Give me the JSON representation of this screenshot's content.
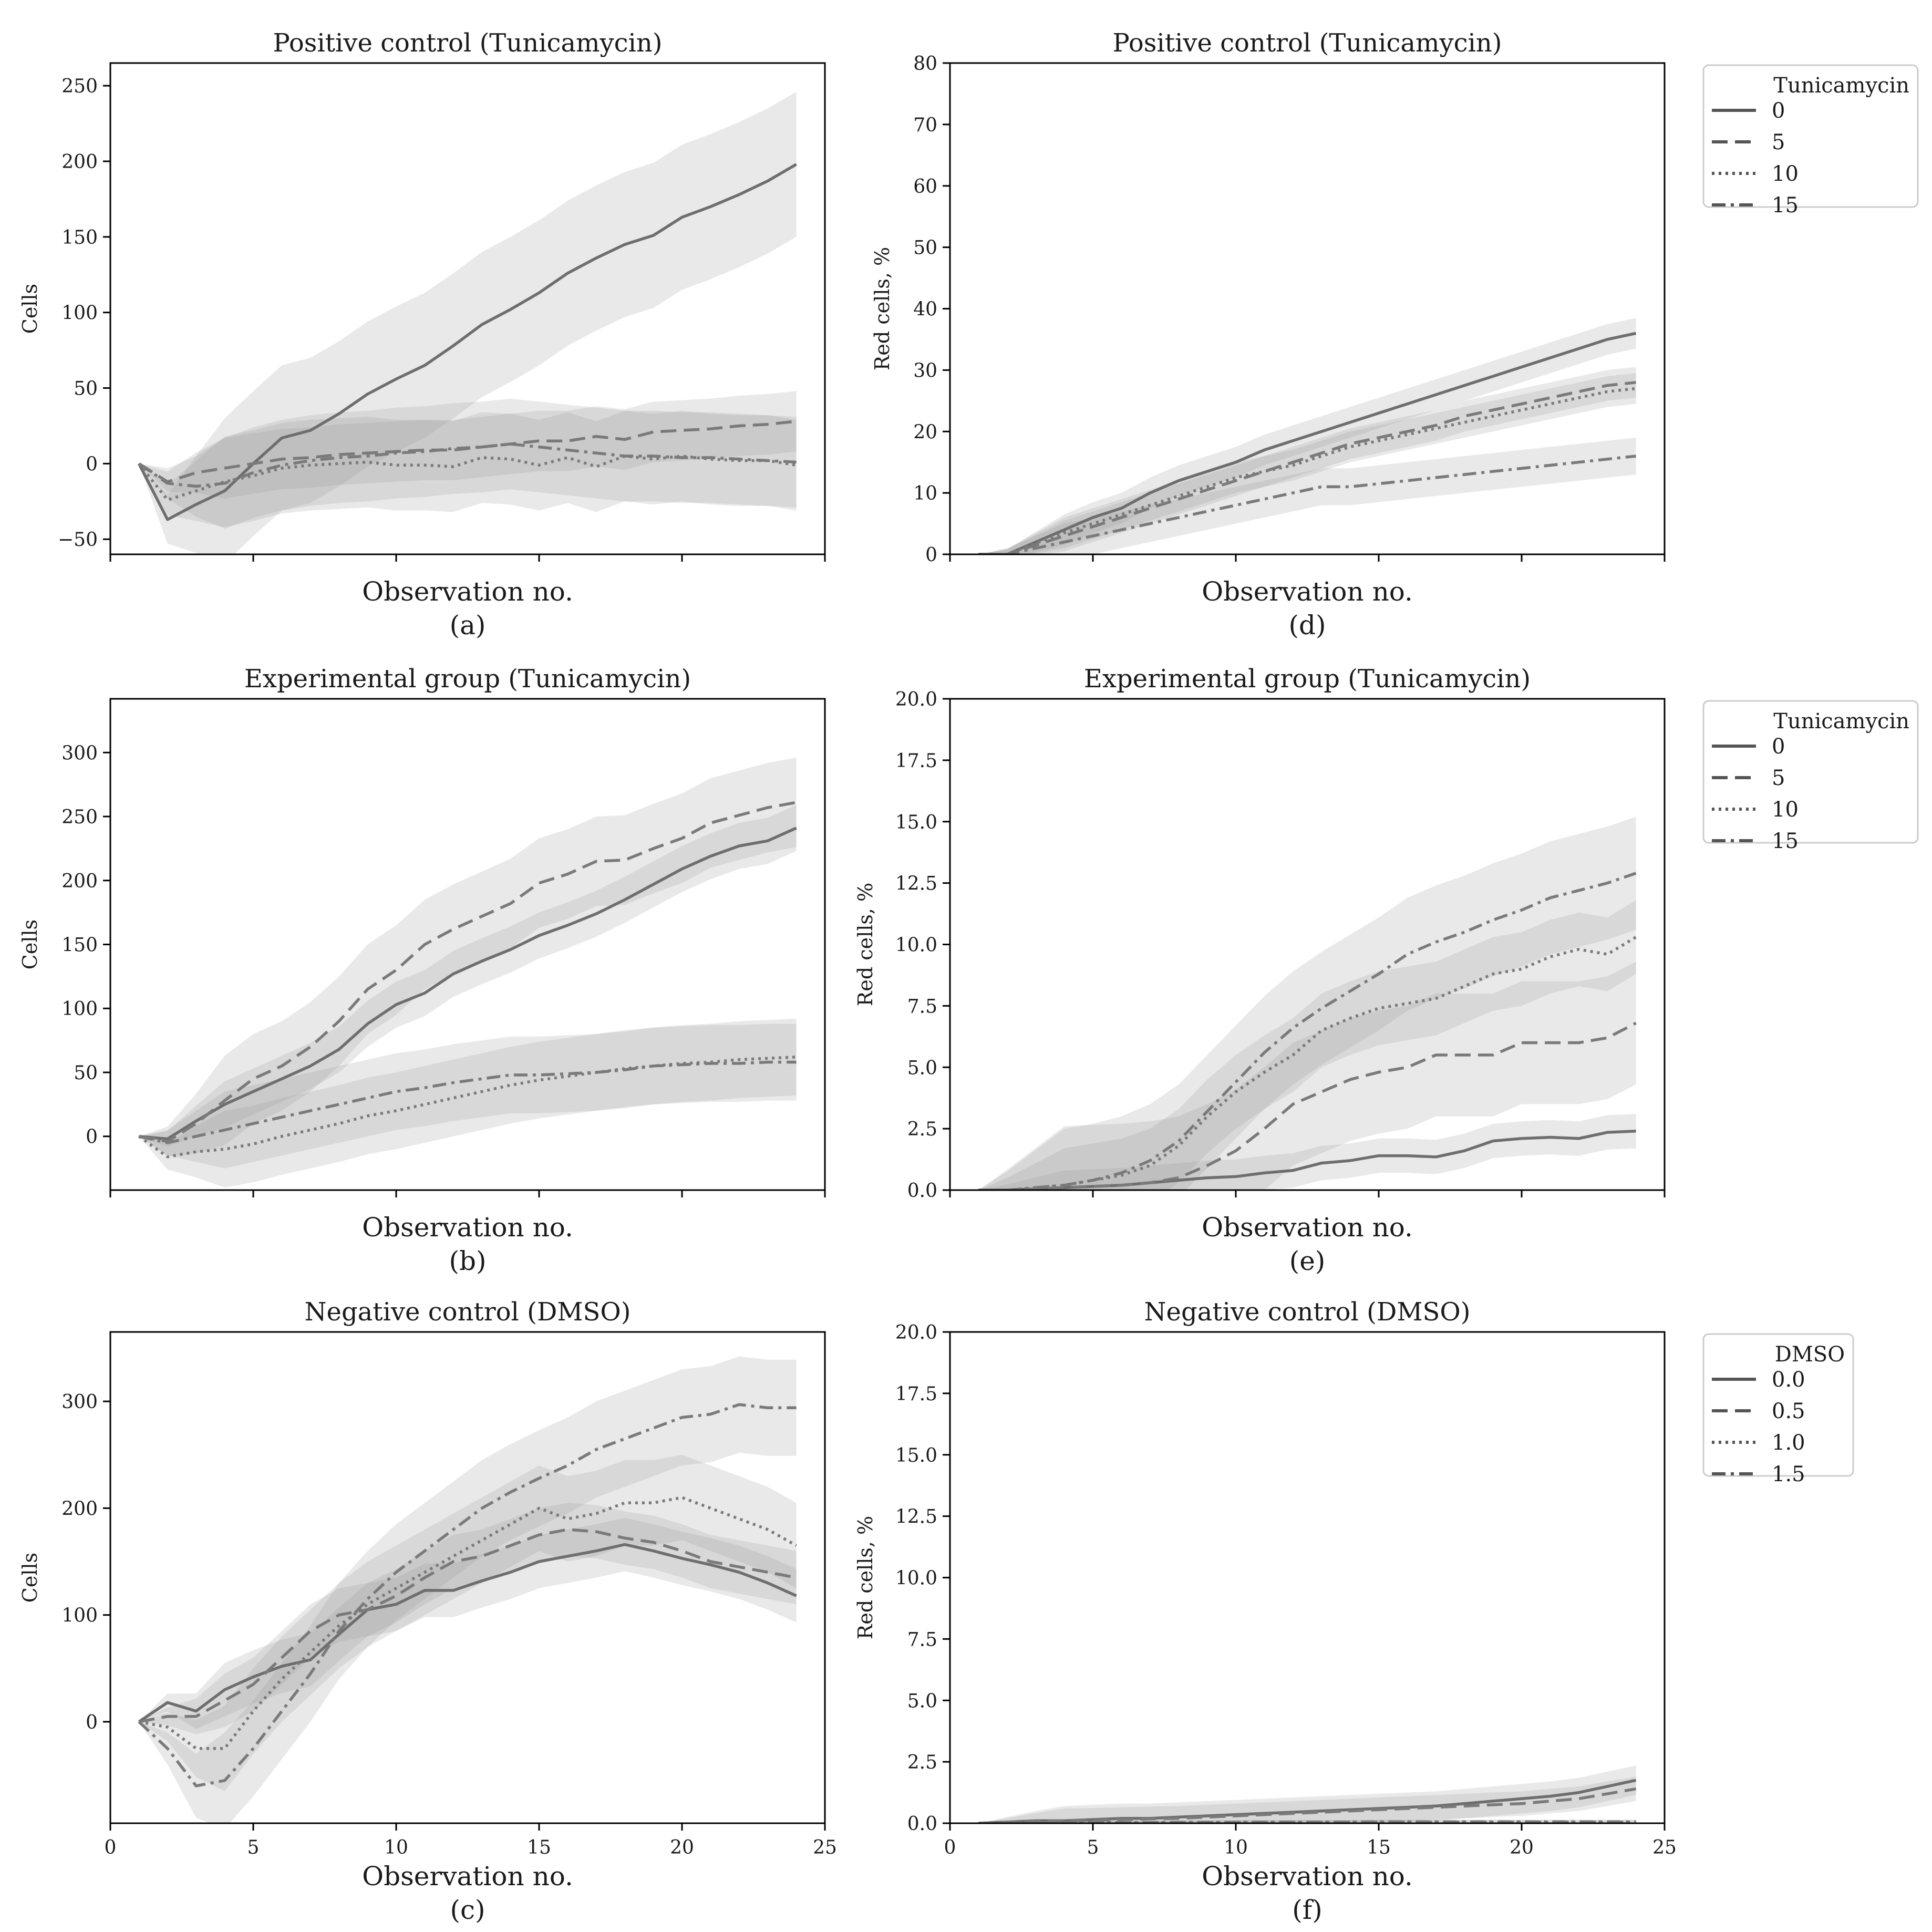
{
  "chart_data": [
    {
      "id": "a",
      "type": "line",
      "title": "Positive control (Tunicamycin)",
      "xlabel": "Observation no.",
      "caption": "(a)",
      "ylabel": "Cells",
      "xlim": [
        0,
        25
      ],
      "ylim": [
        -60,
        265
      ],
      "yticks": [
        -50,
        0,
        50,
        100,
        150,
        200,
        250
      ],
      "show_xtick_labels": false,
      "x": [
        1,
        2,
        3,
        4,
        5,
        6,
        7,
        8,
        9,
        10,
        11,
        12,
        13,
        14,
        15,
        16,
        17,
        18,
        19,
        20,
        21,
        22,
        23,
        24
      ],
      "series": [
        {
          "name": "0",
          "dash": "solid",
          "values": [
            0,
            -37,
            -27,
            -18,
            0,
            17,
            22,
            33,
            46,
            56,
            65,
            78,
            92,
            102,
            113,
            126,
            136,
            145,
            151,
            163,
            170,
            178,
            187,
            198
          ],
          "band": 48
        },
        {
          "name": "5",
          "dash": "dashed",
          "values": [
            0,
            -12,
            -6,
            -3,
            0,
            3,
            4,
            6,
            7,
            8,
            9,
            9,
            11,
            13,
            15,
            15,
            18,
            16,
            21,
            22,
            23,
            25,
            26,
            28
          ],
          "band": 20
        },
        {
          "name": "10",
          "dash": "dotted",
          "values": [
            0,
            -24,
            -18,
            -12,
            -8,
            -3,
            -1,
            0,
            1,
            -1,
            -1,
            -2,
            4,
            3,
            -1,
            4,
            -2,
            5,
            3,
            5,
            3,
            2,
            2,
            -1
          ],
          "band": 30
        },
        {
          "name": "15",
          "dash": "dashdot",
          "values": [
            0,
            -13,
            -15,
            -13,
            -6,
            -1,
            2,
            4,
            5,
            7,
            8,
            10,
            11,
            13,
            11,
            9,
            7,
            5,
            5,
            4,
            4,
            3,
            2,
            1
          ],
          "band": 30
        }
      ]
    },
    {
      "id": "b",
      "type": "line",
      "title": "Experimental group (Tunicamycin)",
      "xlabel": "Observation no.",
      "caption": "(b)",
      "ylabel": "Cells",
      "xlim": [
        0,
        25
      ],
      "ylim": [
        -42,
        342
      ],
      "yticks": [
        0,
        50,
        100,
        150,
        200,
        250,
        300
      ],
      "show_xtick_labels": false,
      "x": [
        1,
        2,
        3,
        4,
        5,
        6,
        7,
        8,
        9,
        10,
        11,
        12,
        13,
        14,
        15,
        16,
        17,
        18,
        19,
        20,
        21,
        22,
        23,
        24
      ],
      "series": [
        {
          "name": "0",
          "dash": "solid",
          "values": [
            0,
            -2,
            12,
            25,
            35,
            45,
            55,
            68,
            88,
            103,
            112,
            127,
            137,
            146,
            157,
            165,
            174,
            185,
            197,
            209,
            219,
            227,
            231,
            241
          ],
          "band": 18
        },
        {
          "name": "5",
          "dash": "dashed",
          "values": [
            0,
            -4,
            10,
            28,
            45,
            55,
            70,
            90,
            115,
            130,
            150,
            162,
            172,
            182,
            198,
            205,
            215,
            216,
            225,
            233,
            245,
            251,
            257,
            261
          ],
          "band": 35
        },
        {
          "name": "10",
          "dash": "dotted",
          "values": [
            0,
            -16,
            -12,
            -10,
            -6,
            0,
            5,
            10,
            16,
            20,
            25,
            30,
            35,
            40,
            44,
            47,
            50,
            53,
            55,
            57,
            58,
            60,
            61,
            62
          ],
          "band": 30
        },
        {
          "name": "15",
          "dash": "dashdot",
          "values": [
            0,
            -5,
            0,
            5,
            10,
            15,
            20,
            25,
            30,
            35,
            38,
            42,
            45,
            48,
            48,
            49,
            50,
            52,
            55,
            56,
            57,
            57,
            58,
            58
          ],
          "band": 30
        }
      ]
    },
    {
      "id": "c",
      "type": "line",
      "title": "Negative control (DMSO)",
      "xlabel": "Observation no.",
      "caption": "(c)",
      "ylabel": "Cells",
      "xlim": [
        0,
        25
      ],
      "ylim": [
        -95,
        365
      ],
      "yticks": [
        0,
        100,
        200,
        300
      ],
      "show_xtick_labels": true,
      "xticks": [
        0,
        5,
        10,
        15,
        20,
        25
      ],
      "x": [
        1,
        2,
        3,
        4,
        5,
        6,
        7,
        8,
        9,
        10,
        11,
        12,
        13,
        14,
        15,
        16,
        17,
        18,
        19,
        20,
        21,
        22,
        23,
        24
      ],
      "series": [
        {
          "name": "0.0",
          "dash": "solid",
          "values": [
            0,
            18,
            10,
            30,
            42,
            52,
            58,
            82,
            105,
            110,
            123,
            123,
            132,
            140,
            150,
            155,
            160,
            166,
            160,
            153,
            147,
            140,
            130,
            118
          ],
          "band": 25
        },
        {
          "name": "0.5",
          "dash": "dashed",
          "values": [
            0,
            5,
            5,
            20,
            35,
            60,
            85,
            100,
            105,
            118,
            135,
            150,
            155,
            165,
            175,
            180,
            178,
            172,
            168,
            160,
            150,
            145,
            140,
            135
          ],
          "band": 25
        },
        {
          "name": "1.0",
          "dash": "dotted",
          "values": [
            0,
            -5,
            -25,
            -25,
            10,
            40,
            65,
            90,
            110,
            125,
            140,
            155,
            170,
            185,
            200,
            190,
            195,
            205,
            205,
            210,
            200,
            190,
            180,
            165
          ],
          "band": 40
        },
        {
          "name": "1.5",
          "dash": "dashdot",
          "values": [
            0,
            -25,
            -60,
            -55,
            -25,
            10,
            45,
            85,
            115,
            140,
            160,
            180,
            200,
            215,
            228,
            240,
            255,
            265,
            275,
            285,
            288,
            297,
            294,
            294
          ],
          "band": 45
        }
      ]
    },
    {
      "id": "d",
      "type": "line",
      "title": "Positive control (Tunicamycin)",
      "xlabel": "Observation no.",
      "caption": "(d)",
      "ylabel": "Red cells, %",
      "xlim": [
        0,
        25
      ],
      "ylim": [
        0,
        80
      ],
      "yticks": [
        0,
        10,
        20,
        30,
        40,
        50,
        60,
        70,
        80
      ],
      "show_xtick_labels": false,
      "x": [
        1,
        2,
        3,
        4,
        5,
        6,
        7,
        8,
        9,
        10,
        11,
        12,
        13,
        14,
        15,
        16,
        17,
        18,
        19,
        20,
        21,
        22,
        23,
        24
      ],
      "legend": {
        "title": "Tunicamycin",
        "entries": [
          "0",
          "5",
          "10",
          "15"
        ],
        "position": "outside-right"
      },
      "series": [
        {
          "name": "0",
          "dash": "solid",
          "values": [
            0,
            0,
            2,
            4,
            6,
            7.5,
            10,
            12,
            13.5,
            15,
            17,
            18.5,
            20,
            21.5,
            23,
            24.5,
            26,
            27.5,
            29,
            30.5,
            32,
            33.5,
            35,
            36
          ],
          "band": 2.5
        },
        {
          "name": "5",
          "dash": "dashed",
          "values": [
            0,
            0,
            1.5,
            3,
            4.5,
            6,
            7.5,
            9,
            10.5,
            12,
            13.5,
            15,
            16.5,
            18,
            19,
            20,
            21,
            22.5,
            23.5,
            24.5,
            25.5,
            26.5,
            27.5,
            28
          ],
          "band": 2.5
        },
        {
          "name": "10",
          "dash": "dotted",
          "values": [
            0,
            0,
            1.8,
            3.5,
            5,
            6.5,
            8,
            9.5,
            11,
            12.5,
            13.5,
            14.5,
            16,
            17.5,
            18.5,
            19.5,
            20.5,
            21.5,
            22.5,
            23.5,
            24.5,
            25.5,
            26.5,
            27
          ],
          "band": 2.5
        },
        {
          "name": "15",
          "dash": "dashdot",
          "values": [
            0,
            0,
            1,
            2,
            3,
            4,
            5,
            6,
            7,
            8,
            9,
            10,
            11,
            11,
            11.5,
            12,
            12.5,
            13,
            13.5,
            14,
            14.5,
            15,
            15.5,
            16
          ],
          "band": 3
        }
      ]
    },
    {
      "id": "e",
      "type": "line",
      "title": "Experimental group (Tunicamycin)",
      "xlabel": "Observation no.",
      "caption": "(e)",
      "ylabel": "Red cells, %",
      "xlim": [
        0,
        25
      ],
      "ylim": [
        0,
        20
      ],
      "yticks": [
        0.0,
        2.5,
        5.0,
        7.5,
        10.0,
        12.5,
        15.0,
        17.5,
        20.0
      ],
      "show_xtick_labels": false,
      "x": [
        1,
        2,
        3,
        4,
        5,
        6,
        7,
        8,
        9,
        10,
        11,
        12,
        13,
        14,
        15,
        16,
        17,
        18,
        19,
        20,
        21,
        22,
        23,
        24
      ],
      "legend": {
        "title": "Tunicamycin",
        "entries": [
          "0",
          "5",
          "10",
          "15"
        ],
        "position": "outside-right"
      },
      "series": [
        {
          "name": "0",
          "dash": "solid",
          "values": [
            0,
            0,
            0.05,
            0.1,
            0.15,
            0.2,
            0.3,
            0.4,
            0.5,
            0.55,
            0.7,
            0.8,
            1.1,
            1.2,
            1.4,
            1.4,
            1.35,
            1.6,
            2.0,
            2.1,
            2.15,
            2.1,
            2.35,
            2.4
          ],
          "band": 0.7
        },
        {
          "name": "5",
          "dash": "dashed",
          "values": [
            0,
            0,
            0.05,
            0.1,
            0.15,
            0.2,
            0.3,
            0.5,
            1.0,
            1.6,
            2.5,
            3.5,
            4.0,
            4.5,
            4.8,
            5.0,
            5.5,
            5.5,
            5.5,
            6.0,
            6.0,
            6.0,
            6.2,
            6.8
          ],
          "band": 2.5
        },
        {
          "name": "10",
          "dash": "dotted",
          "values": [
            0,
            0,
            0.1,
            0.2,
            0.4,
            0.6,
            1.0,
            1.8,
            3.0,
            4.0,
            4.8,
            5.5,
            6.5,
            7.0,
            7.4,
            7.6,
            7.8,
            8.3,
            8.8,
            9.0,
            9.5,
            9.8,
            9.6,
            10.3
          ],
          "band": 1.5
        },
        {
          "name": "15",
          "dash": "dashdot",
          "values": [
            0,
            0,
            0.1,
            0.2,
            0.4,
            0.7,
            1.2,
            2.0,
            3.2,
            4.4,
            5.6,
            6.6,
            7.4,
            8.1,
            8.8,
            9.6,
            10.1,
            10.5,
            11.0,
            11.4,
            11.9,
            12.2,
            12.5,
            12.9
          ],
          "band": 2.3
        }
      ]
    },
    {
      "id": "f",
      "type": "line",
      "title": "Negative control (DMSO)",
      "xlabel": "Observation no.",
      "caption": "(f)",
      "ylabel": "Red cells, %",
      "xlim": [
        0,
        25
      ],
      "ylim": [
        0,
        20
      ],
      "yticks": [
        0.0,
        2.5,
        5.0,
        7.5,
        10.0,
        12.5,
        15.0,
        17.5,
        20.0
      ],
      "show_xtick_labels": true,
      "xticks": [
        0,
        5,
        10,
        15,
        20,
        25
      ],
      "x": [
        1,
        2,
        3,
        4,
        5,
        6,
        7,
        8,
        9,
        10,
        11,
        12,
        13,
        14,
        15,
        16,
        17,
        18,
        19,
        20,
        21,
        22,
        23,
        24
      ],
      "legend": {
        "title": "DMSO",
        "entries": [
          "0.0",
          "0.5",
          "1.0",
          "1.5"
        ],
        "position": "outside-right"
      },
      "series": [
        {
          "name": "0.0",
          "dash": "solid",
          "values": [
            0,
            0.05,
            0.1,
            0.1,
            0.15,
            0.2,
            0.2,
            0.25,
            0.3,
            0.35,
            0.4,
            0.45,
            0.5,
            0.55,
            0.6,
            0.65,
            0.7,
            0.8,
            0.9,
            1.0,
            1.1,
            1.25,
            1.5,
            1.75
          ],
          "band": 0.6
        },
        {
          "name": "0.5",
          "dash": "dashed",
          "values": [
            0,
            0.04,
            0.08,
            0.1,
            0.12,
            0.15,
            0.18,
            0.2,
            0.25,
            0.3,
            0.35,
            0.4,
            0.45,
            0.5,
            0.55,
            0.6,
            0.65,
            0.7,
            0.75,
            0.8,
            0.9,
            1.0,
            1.2,
            1.4
          ],
          "band": 0.5
        },
        {
          "name": "1.0",
          "dash": "dotted",
          "values": [
            0,
            0.01,
            0.02,
            0.02,
            0.02,
            0.03,
            0.03,
            0.03,
            0.03,
            0.04,
            0.04,
            0.04,
            0.04,
            0.05,
            0.05,
            0.05,
            0.05,
            0.05,
            0.05,
            0.05,
            0.05,
            0.05,
            0.05,
            0.05
          ],
          "band": 0.08
        },
        {
          "name": "1.5",
          "dash": "dashdot",
          "values": [
            0,
            0.01,
            0.02,
            0.02,
            0.03,
            0.03,
            0.03,
            0.04,
            0.04,
            0.04,
            0.05,
            0.05,
            0.05,
            0.05,
            0.06,
            0.06,
            0.06,
            0.06,
            0.06,
            0.06,
            0.06,
            0.06,
            0.06,
            0.06
          ],
          "band": 0.08
        }
      ]
    }
  ]
}
